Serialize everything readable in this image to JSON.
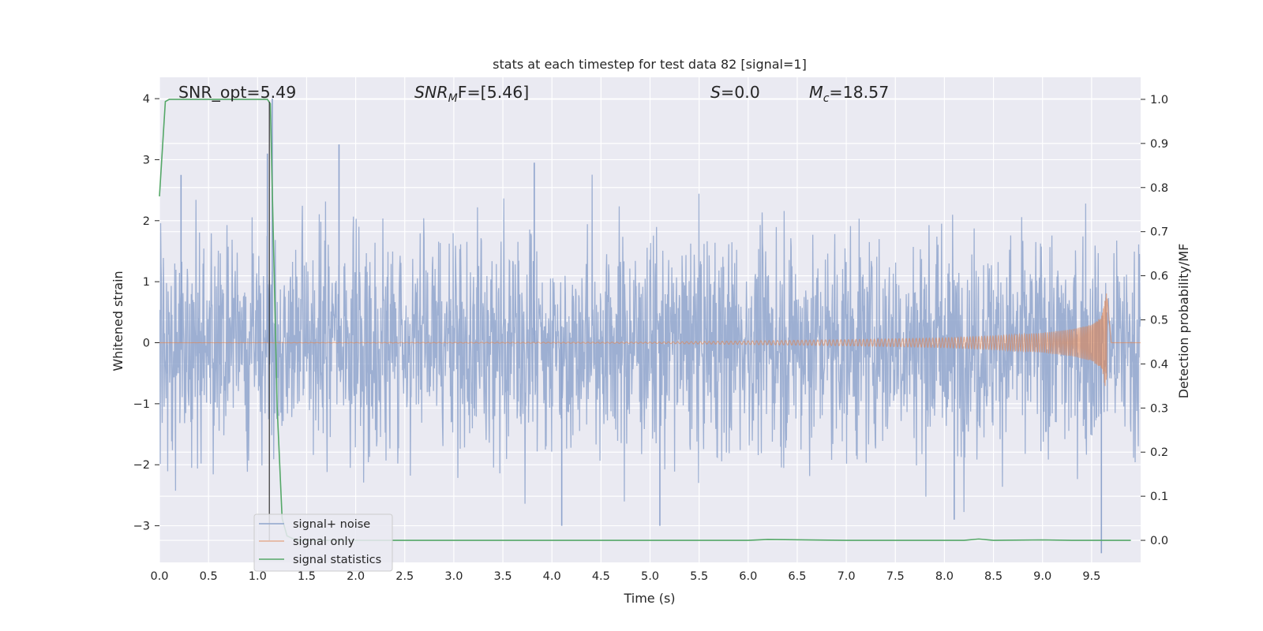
{
  "chart_data": {
    "type": "line",
    "title": "stats at each timestep for test data 82 [signal=1]",
    "xlabel": "Time (s)",
    "ylabel_left": "Whitened strain",
    "ylabel_right": "Detection probability/MF",
    "xlim": [
      0.0,
      10.0
    ],
    "ylim_left": [
      -3.6,
      4.35
    ],
    "ylim_right": [
      -0.05,
      1.05
    ],
    "x_ticks": [
      0.0,
      0.5,
      1.0,
      1.5,
      2.0,
      2.5,
      3.0,
      3.5,
      4.0,
      4.5,
      5.0,
      5.5,
      6.0,
      6.5,
      7.0,
      7.5,
      8.0,
      8.5,
      9.0,
      9.5
    ],
    "x_tick_labels": [
      "0.0",
      "0.5",
      "1.0",
      "1.5",
      "2.0",
      "2.5",
      "3.0",
      "3.5",
      "4.0",
      "4.5",
      "5.0",
      "5.5",
      "6.0",
      "6.5",
      "7.0",
      "7.5",
      "8.0",
      "8.5",
      "9.0",
      "9.5"
    ],
    "left_ticks": [
      -3,
      -2,
      -1,
      0,
      1,
      2,
      3,
      4
    ],
    "left_tick_labels": [
      "−3",
      "−2",
      "−1",
      "0",
      "1",
      "2",
      "3",
      "4"
    ],
    "right_ticks": [
      0.0,
      0.1,
      0.2,
      0.3,
      0.4,
      0.5,
      0.6,
      0.7,
      0.8,
      0.9,
      1.0
    ],
    "right_tick_labels": [
      "0.0",
      "0.1",
      "0.2",
      "0.3",
      "0.4",
      "0.5",
      "0.6",
      "0.7",
      "0.8",
      "0.9",
      "1.0"
    ],
    "grid": true,
    "legend_placement": "lower-left",
    "annotations": {
      "snr_opt": "SNR_opt=5.49",
      "snr_mf_symbol": "SNR",
      "snr_mf_sub": "M",
      "snr_mf_rest": "F=[5.46]",
      "s_symbol": "S",
      "s_rest": "=0.0",
      "mc_symbol": "M",
      "mc_sub": "c",
      "mc_rest": "=18.57"
    },
    "marker_line_x": 1.12,
    "series": [
      {
        "name": "signal+ noise",
        "color": "#8fa4cd",
        "axis": "left",
        "typical_abs_amplitude": 1.4,
        "peaks": [
          [
            0.22,
            2.75
          ],
          [
            1.1,
            3.1
          ],
          [
            1.15,
            4.0
          ],
          [
            1.83,
            3.25
          ],
          [
            3.82,
            2.95
          ],
          [
            9.6,
            -3.45
          ],
          [
            4.1,
            -3.0
          ],
          [
            5.1,
            -3.0
          ],
          [
            8.1,
            -2.9
          ]
        ]
      },
      {
        "name": "signal only",
        "color": "#dd8452",
        "axis": "left",
        "x": [
          0.0,
          5.0,
          6.0,
          7.0,
          8.0,
          8.5,
          9.0,
          9.3,
          9.5,
          9.6,
          9.66,
          9.7,
          10.0
        ],
        "envelope": [
          0.0,
          0.01,
          0.03,
          0.05,
          0.08,
          0.11,
          0.16,
          0.22,
          0.3,
          0.42,
          0.88,
          0.0,
          0.0
        ]
      },
      {
        "name": "signal statistics",
        "color": "#55a868",
        "axis": "right",
        "x": [
          0.0,
          0.06,
          0.1,
          0.2,
          1.05,
          1.1,
          1.13,
          1.2,
          1.25,
          1.3,
          1.4,
          2.0,
          4.0,
          6.0,
          6.2,
          7.0,
          8.2,
          8.35,
          8.5,
          9.0,
          9.3,
          9.9
        ],
        "y": [
          0.78,
          0.995,
          1.0,
          1.0,
          1.0,
          1.0,
          0.99,
          0.3,
          0.05,
          0.01,
          0.0,
          0.0,
          0.0,
          0.0,
          0.002,
          0.0,
          0.0,
          0.003,
          0.0,
          0.001,
          0.0,
          0.0
        ]
      }
    ]
  }
}
